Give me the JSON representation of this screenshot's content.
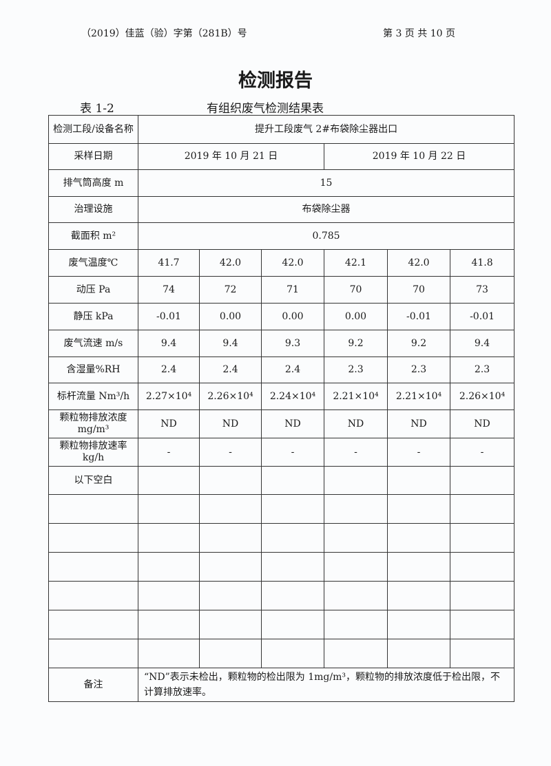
{
  "header": {
    "doc_no": "（2019）佳蓝（验）字第（281B）号",
    "page": "第 3 页 共 10 页"
  },
  "title": "检测报告",
  "table_no": "表 1-2",
  "table_name": "有组织废气检测结果表",
  "rows": {
    "section_label": "检测工段/设备名称",
    "section_value": "提升工段废气 2#布袋除尘器出口",
    "date_label": "采样日期",
    "date1": "2019 年 10 月 21 日",
    "date2": "2019 年 10 月 22 日",
    "height_label": "排气筒高度 m",
    "height": "15",
    "facility_label": "治理设施",
    "facility": "布袋除尘器",
    "area_label": "截面积 m²",
    "area": "0.785",
    "temp_label": "废气温度℃",
    "temp": [
      "41.7",
      "42.0",
      "42.0",
      "42.1",
      "42.0",
      "41.8"
    ],
    "dyn_label": "动压 Pa",
    "dyn": [
      "74",
      "72",
      "71",
      "70",
      "70",
      "73"
    ],
    "static_label": "静压 kPa",
    "static": [
      "-0.01",
      "0.00",
      "0.00",
      "0.00",
      "-0.01",
      "-0.01"
    ],
    "vel_label": "废气流速 m/s",
    "vel": [
      "9.4",
      "9.4",
      "9.3",
      "9.2",
      "9.2",
      "9.4"
    ],
    "hum_label": "含湿量%RH",
    "hum": [
      "2.4",
      "2.4",
      "2.4",
      "2.3",
      "2.3",
      "2.3"
    ],
    "flow_label": "标杆流量 Nm³/h",
    "flow": [
      "2.27×10⁴",
      "2.26×10⁴",
      "2.24×10⁴",
      "2.21×10⁴",
      "2.21×10⁴",
      "2.26×10⁴"
    ],
    "conc_label": "颗粒物排放浓度 mg/m³",
    "conc": [
      "ND",
      "ND",
      "ND",
      "ND",
      "ND",
      "ND"
    ],
    "rate_label": "颗粒物排放速率 kg/h",
    "rate": [
      "-",
      "-",
      "-",
      "-",
      "-",
      "-"
    ],
    "blank_label": "以下空白",
    "remark_label": "备注",
    "remark": "“ND”表示未检出，颗粒物的检出限为 1mg/m³，颗粒物的排放浓度低于检出限，不计算排放速率。"
  }
}
